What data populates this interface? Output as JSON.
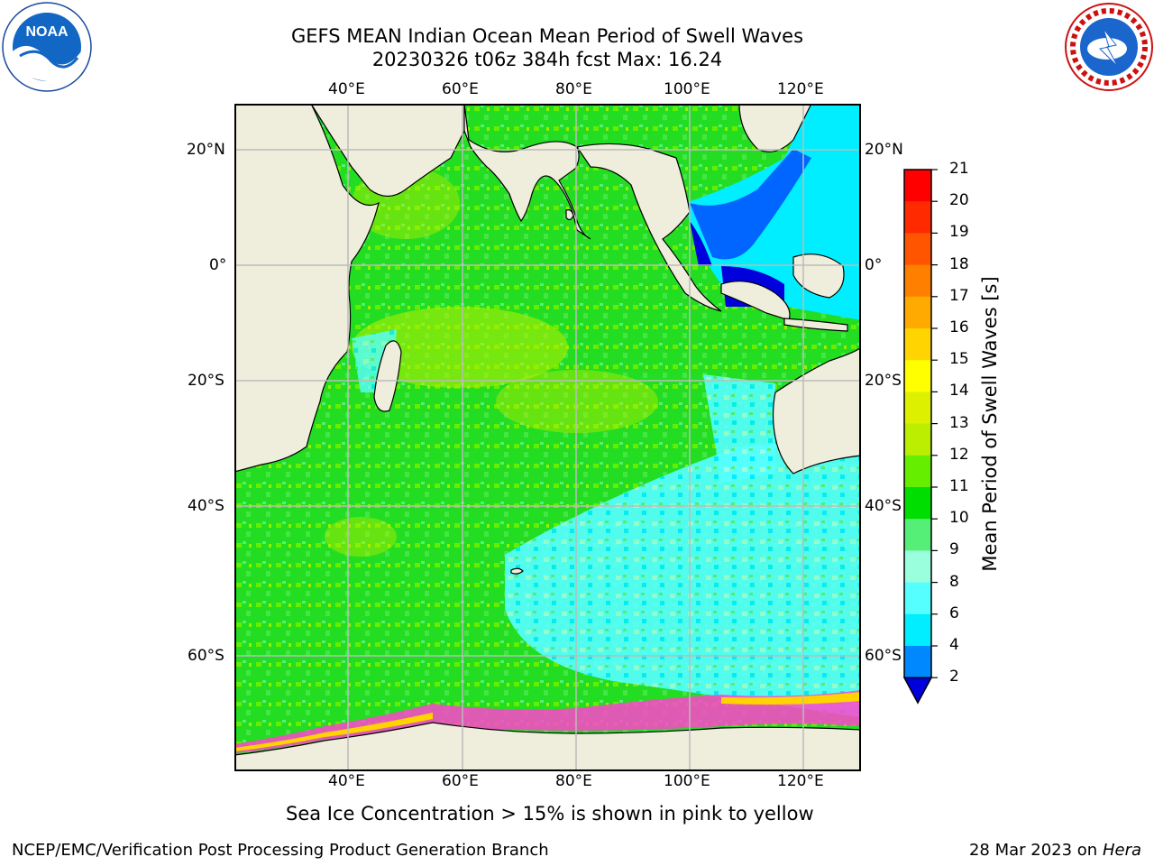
{
  "title": {
    "line1": "GEFS MEAN Indian Ocean Mean Period of Swell Waves",
    "line2": "20230326 t06z 384h fcst   Max: 16.24"
  },
  "logos": {
    "left": "NOAA",
    "right": "NATIONAL WEATHER SERVICE"
  },
  "map": {
    "region": "Indian Ocean",
    "lon_ticks": [
      "40°E",
      "60°E",
      "80°E",
      "100°E",
      "120°E"
    ],
    "lat_ticks": [
      "20°N",
      "0°",
      "20°S",
      "40°S",
      "60°S"
    ],
    "grid": true,
    "land_color": "#efeedc",
    "ocean_primary_color": "#22dd22"
  },
  "colorbar": {
    "label": "Mean Period of Swell Waves [s]",
    "ticks": [
      "21",
      "20",
      "19",
      "18",
      "17",
      "16",
      "15",
      "14",
      "13",
      "12",
      "11",
      "10",
      "9",
      "8",
      "6",
      "4",
      "2"
    ],
    "colors": [
      "#ff0000",
      "#ff2a00",
      "#ff5500",
      "#ff8000",
      "#ffaa00",
      "#ffd400",
      "#ffff00",
      "#ddf000",
      "#bbee00",
      "#66ee00",
      "#00dd00",
      "#55ee77",
      "#99ffdd",
      "#55ffff",
      "#00eeff",
      "#0088ff",
      "#0000dd"
    ]
  },
  "note": "Sea Ice Concentration > 15% is shown in pink to yellow",
  "footer": {
    "left": "NCEP/EMC/Verification Post Processing Product Generation Branch",
    "right_date": "28 Mar 2023 on",
    "right_host": "Hera"
  }
}
